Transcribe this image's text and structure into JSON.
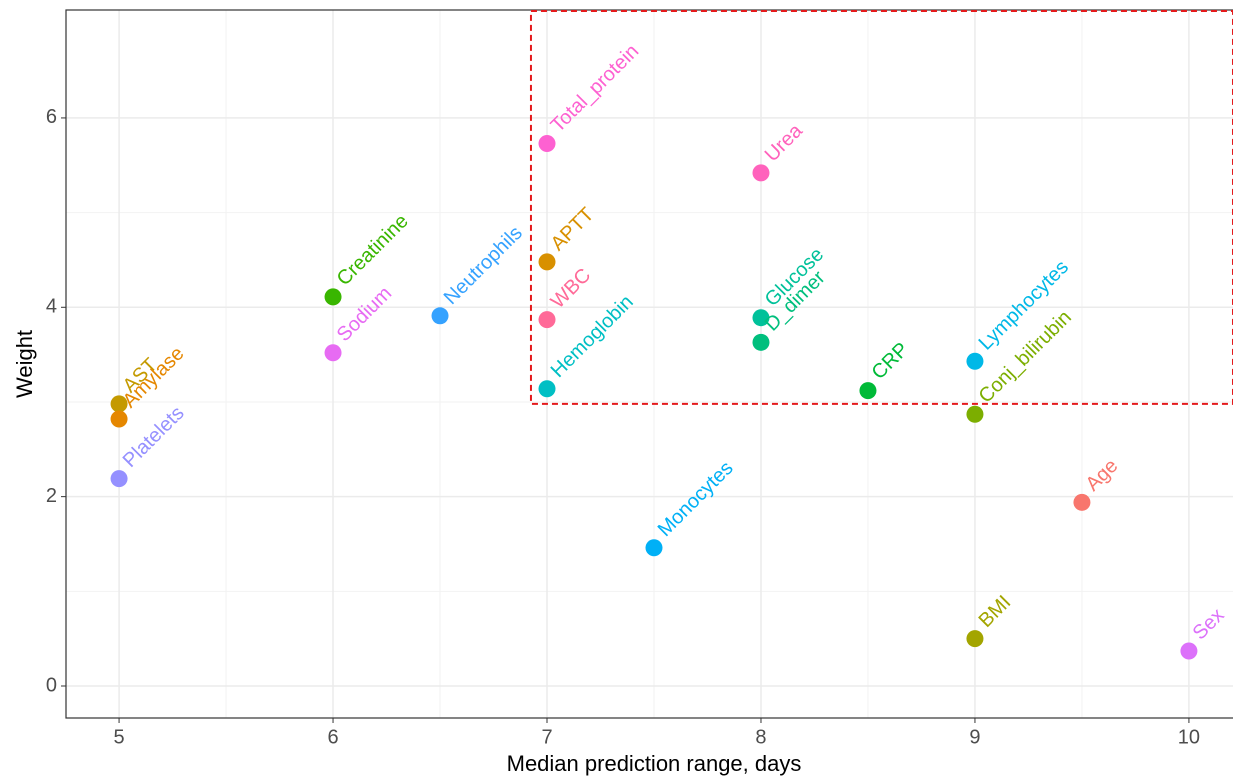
{
  "chart_data": {
    "type": "scatter",
    "x_label": "Median prediction range, days",
    "y_label": "Weight",
    "xlim": [
      4.752,
      10.206
    ],
    "ylim": [
      -0.338,
      7.14
    ],
    "xticks": [
      5,
      6,
      7,
      8,
      9,
      10
    ],
    "yticks": [
      0,
      2,
      4,
      6
    ],
    "grid": true,
    "highlight_box": {
      "color": "#e41a1c",
      "xlim": [
        6.925,
        10.206
      ],
      "ylim": [
        2.98,
        7.13
      ]
    },
    "series": [
      {
        "name": "AST",
        "color": "#C49A00",
        "x": [
          5
        ],
        "values": [
          2.98
        ]
      },
      {
        "name": "Amylase",
        "color": "#E58700",
        "x": [
          5
        ],
        "values": [
          2.82
        ]
      },
      {
        "name": "Platelets",
        "color": "#9590FF",
        "x": [
          5
        ],
        "values": [
          2.19
        ]
      },
      {
        "name": "Creatinine",
        "color": "#39B600",
        "x": [
          6
        ],
        "values": [
          4.11
        ]
      },
      {
        "name": "Sodium",
        "color": "#E76BF3",
        "x": [
          6
        ],
        "values": [
          3.52
        ]
      },
      {
        "name": "Neutrophils",
        "color": "#35A2FF",
        "x": [
          6.5
        ],
        "values": [
          3.91
        ]
      },
      {
        "name": "Total_protein",
        "color": "#FD61D1",
        "x": [
          7
        ],
        "values": [
          5.73
        ]
      },
      {
        "name": "APTT",
        "color": "#D89000",
        "x": [
          7
        ],
        "values": [
          4.48
        ]
      },
      {
        "name": "WBC",
        "color": "#FF6A98",
        "x": [
          7
        ],
        "values": [
          3.87
        ]
      },
      {
        "name": "Hemoglobin",
        "color": "#00BFC4",
        "x": [
          7
        ],
        "values": [
          3.14
        ]
      },
      {
        "name": "Monocytes",
        "color": "#00B0F6",
        "x": [
          7.5
        ],
        "values": [
          1.46
        ]
      },
      {
        "name": "Urea",
        "color": "#FF62BC",
        "x": [
          8
        ],
        "values": [
          5.42
        ]
      },
      {
        "name": "Glucose",
        "color": "#00C19A",
        "x": [
          8
        ],
        "values": [
          3.89
        ]
      },
      {
        "name": "D_dimer",
        "color": "#00BF7D",
        "x": [
          8
        ],
        "values": [
          3.63
        ]
      },
      {
        "name": "CRP",
        "color": "#00BA38",
        "x": [
          8.5
        ],
        "values": [
          3.12
        ]
      },
      {
        "name": "Lymphocytes",
        "color": "#00B8E7",
        "x": [
          9
        ],
        "values": [
          3.43
        ]
      },
      {
        "name": "Conj_bilirubin",
        "color": "#7CAE00",
        "x": [
          9
        ],
        "values": [
          2.87
        ]
      },
      {
        "name": "BMI",
        "color": "#A3A500",
        "x": [
          9
        ],
        "values": [
          0.5
        ]
      },
      {
        "name": "Age",
        "color": "#F8766D",
        "x": [
          9.5
        ],
        "values": [
          1.94
        ]
      },
      {
        "name": "Sex",
        "color": "#DC71FA",
        "x": [
          10
        ],
        "values": [
          0.37
        ]
      }
    ]
  }
}
